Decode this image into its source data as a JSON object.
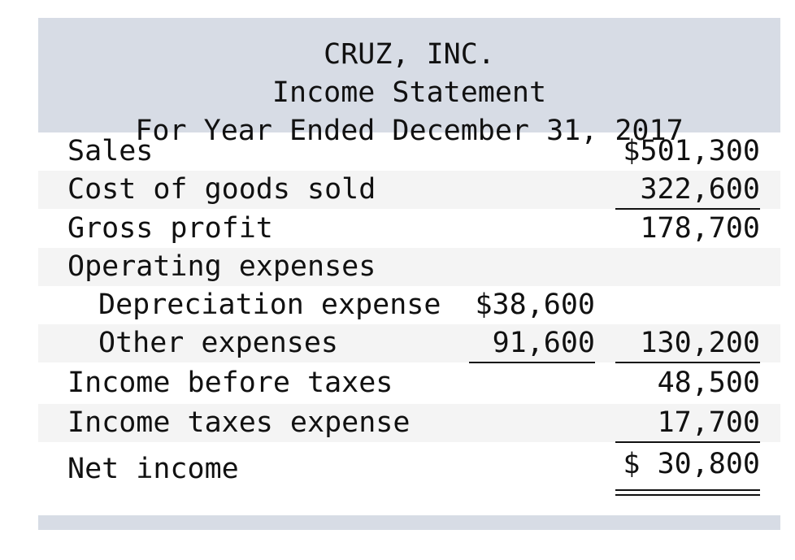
{
  "statement": {
    "company": "CRUZ, INC.",
    "title": "Income Statement",
    "period": "For Year Ended December 31, 2017"
  },
  "rows": {
    "sales": {
      "label": "Sales",
      "col2": "$501,300"
    },
    "cogs": {
      "label": "Cost of goods sold",
      "col2": "322,600"
    },
    "gross_profit": {
      "label": "Gross profit",
      "col2": "178,700"
    },
    "operating_expenses": {
      "label": "Operating expenses"
    },
    "depreciation": {
      "label": "Depreciation expense",
      "col1": "$38,600"
    },
    "other_expenses": {
      "label": "Other expenses",
      "col1": "91,600",
      "col2": "130,200"
    },
    "income_before_taxes": {
      "label": "Income before taxes",
      "col2": "48,500"
    },
    "income_taxes": {
      "label": "Income taxes expense",
      "col2": "17,700"
    },
    "net_income": {
      "label": "Net income",
      "col2": "$ 30,800"
    }
  }
}
